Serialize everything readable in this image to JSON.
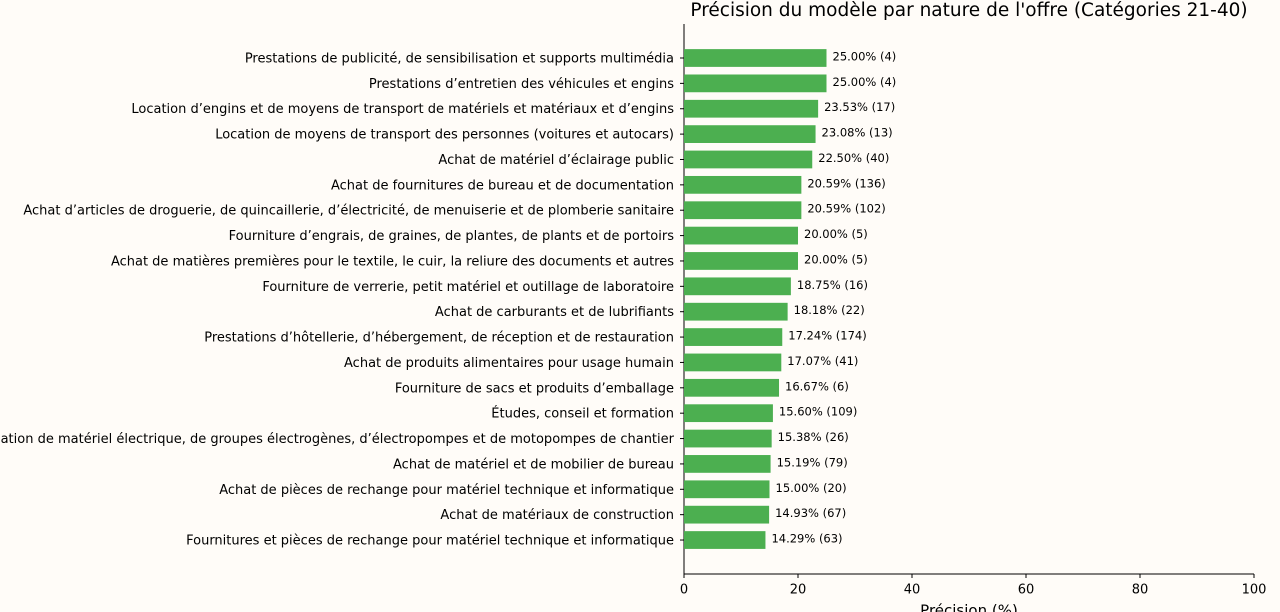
{
  "chart_data": {
    "type": "hbar",
    "title": "Précision du modèle par nature de l'offre (Catégories 21-40)",
    "x_label": "Précision (%)",
    "categories": [
      "Prestations de publicité, de sensibilisation et supports multimédia",
      "Prestations d’entretien des véhicules et engins",
      "Location d’engins et de moyens de transport de matériels et matériaux et d’engins",
      "Location de moyens de transport des personnes (voitures et autocars)",
      "Achat de matériel d’éclairage public",
      "Achat de fournitures de bureau et de documentation",
      "Achat d’articles de droguerie, de quincaillerie, d’électricité, de menuiserie et de plomberie sanitaire",
      "Fourniture d’engrais, de graines, de plantes, de plants et de portoirs",
      "Achat de matières premières pour le textile, le cuir, la reliure des documents et autres",
      "Fourniture de verrerie, petit matériel et outillage de laboratoire",
      "Achat de carburants et de lubrifiants",
      "Prestations d’hôtellerie, d’hébergement, de réception et de restauration",
      "Achat de produits alimentaires pour usage humain",
      "Fourniture de sacs et produits d’emballage",
      "Études, conseil et formation",
      "Location de matériel électrique, de groupes électrogènes, d’électropompes et de motopompes de chantier",
      "Achat de matériel et de mobilier de bureau",
      "Achat de pièces de rechange pour matériel technique et informatique",
      "Achat de matériaux de construction",
      "Fournitures et pièces de rechange pour matériel technique et informatique"
    ],
    "values": [
      25.0,
      25.0,
      23.53,
      23.08,
      22.5,
      20.59,
      20.59,
      20.0,
      20.0,
      18.75,
      18.18,
      17.24,
      17.07,
      16.67,
      15.6,
      15.38,
      15.19,
      15.0,
      14.93,
      14.29
    ],
    "value_labels": [
      "25.00% (4)",
      "25.00% (4)",
      "23.53% (17)",
      "23.08% (13)",
      "22.50% (40)",
      "20.59% (136)",
      "20.59% (102)",
      "20.00% (5)",
      "20.00% (5)",
      "18.75% (16)",
      "18.18% (22)",
      "17.24% (174)",
      "17.07% (41)",
      "16.67% (6)",
      "15.60% (109)",
      "15.38% (26)",
      "15.19% (79)",
      "15.00% (20)",
      "14.93% (67)",
      "14.29% (63)"
    ],
    "color": "#4caf50",
    "xlim": [
      0,
      100
    ],
    "xticks": [
      0,
      20,
      40,
      60,
      80,
      100
    ]
  }
}
